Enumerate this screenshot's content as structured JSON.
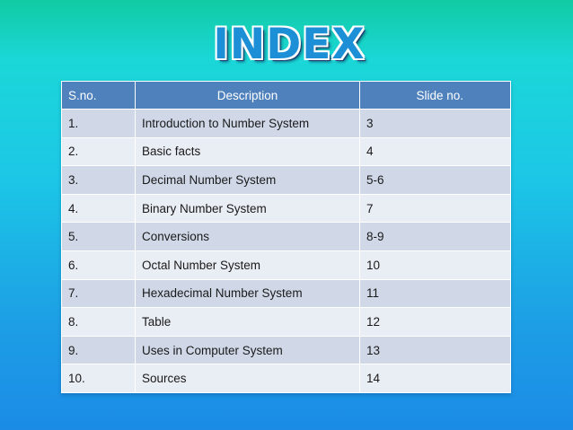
{
  "title": "INDEX",
  "table": {
    "headers": [
      "S.no.",
      "Description",
      "Slide no."
    ],
    "rows": [
      [
        "1.",
        "Introduction to Number System",
        "3"
      ],
      [
        "2.",
        "Basic facts",
        "4"
      ],
      [
        "3.",
        "Decimal Number System",
        "5-6"
      ],
      [
        "4.",
        "Binary Number System",
        "7"
      ],
      [
        "5.",
        "Conversions",
        "8-9"
      ],
      [
        "6.",
        "Octal Number System",
        "10"
      ],
      [
        "7.",
        "Hexadecimal Number System",
        "11"
      ],
      [
        "8.",
        "Table",
        "12"
      ],
      [
        "9.",
        "Uses in Computer System",
        "13"
      ],
      [
        "10.",
        "Sources",
        "14"
      ]
    ]
  },
  "colors": {
    "header_bg": "#4f81bd",
    "row_odd": "#d0d8e8",
    "row_even": "#e9edf4",
    "background_top": "#11cba3",
    "background_bottom": "#1b8be6"
  }
}
